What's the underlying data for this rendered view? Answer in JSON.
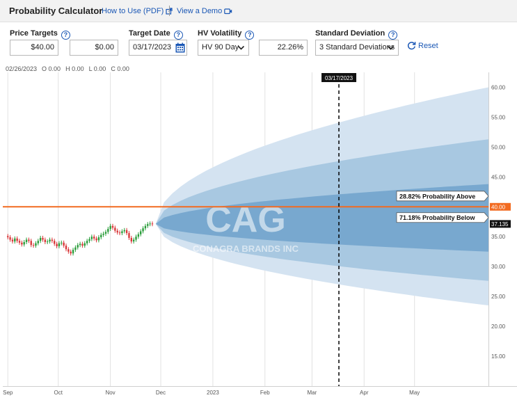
{
  "header": {
    "title": "Probability Calculator",
    "how_to_link": "How to Use (PDF)",
    "demo_link": "View a Demo"
  },
  "controls": {
    "price_targets_label": "Price Targets",
    "price_target_1": "$40.00",
    "price_target_2": "$0.00",
    "target_date_label": "Target Date",
    "target_date": "03/17/2023",
    "hv_label": "HV Volatility",
    "hv_period": "HV 90 Day",
    "hv_value": "22.26%",
    "stddev_label": "Standard Deviation",
    "stddev_value": "3 Standard Deviations",
    "reset_label": "Reset"
  },
  "ohlc": {
    "date": "02/26/2023",
    "open": "O 0.00",
    "high": "H 0.00",
    "low": "L 0.00",
    "close": "C 0.00"
  },
  "colors": {
    "band_outer": "#d4e3f1",
    "band_middle": "#a8c8e1",
    "band_inner": "#78a8cf",
    "target_line": "#f26b21",
    "candle_up": "#2a9d3a",
    "candle_down": "#d9383a"
  },
  "chart_data": {
    "type": "line",
    "title": "",
    "watermark_symbol": "CAG",
    "watermark_name": "CONAGRA BRANDS INC",
    "x_tick_labels": [
      "Sep",
      "Oct",
      "Nov",
      "Dec",
      "2023",
      "Feb",
      "Mar",
      "Apr",
      "May"
    ],
    "x_tick_days": [
      0,
      30,
      61,
      91,
      122,
      153,
      181,
      212,
      242
    ],
    "y_tick_labels": [
      "15.00",
      "20.00",
      "25.00",
      "30.00",
      "35.00",
      "40.00",
      "45.00",
      "50.00",
      "55.00",
      "60.00"
    ],
    "y_ticks": [
      15,
      20,
      25,
      30,
      35,
      40,
      45,
      50,
      55,
      60
    ],
    "ylim": [
      10,
      62.5
    ],
    "xlim_days": [
      -3,
      286
    ],
    "current_price": 37.135,
    "current_price_label": "37.135",
    "start_day": 88,
    "end_day": 286,
    "target_price": 40,
    "target_price_label": "40.00",
    "target_date_day": 197,
    "target_date_label": "03/17/2023",
    "probability_above": "28.82% Probability Above",
    "probability_below": "71.18% Probability Below",
    "bands_at_end": {
      "sd1": [
        32.5,
        43.8
      ],
      "sd2": [
        27.6,
        51.3
      ],
      "sd3": [
        23.5,
        60.0
      ]
    },
    "closes": [
      34.9,
      34.5,
      34.2,
      34.7,
      34.3,
      34.0,
      33.7,
      34.1,
      34.5,
      34.3,
      33.6,
      33.5,
      33.9,
      34.3,
      34.8,
      34.5,
      34.1,
      34.2,
      34.5,
      34.3,
      33.8,
      33.4,
      33.9,
      34.0,
      33.5,
      32.9,
      32.5,
      32.2,
      32.8,
      33.2,
      33.6,
      33.8,
      33.5,
      33.9,
      34.3,
      34.6,
      35.0,
      34.7,
      34.4,
      34.9,
      35.3,
      35.5,
      35.8,
      36.3,
      36.8,
      36.5,
      36.0,
      35.7,
      35.6,
      35.9,
      36.1,
      35.6,
      34.8,
      34.2,
      34.5,
      35.0,
      35.4,
      35.9,
      36.4,
      36.8,
      37.1,
      37.2,
      37.1
    ]
  }
}
